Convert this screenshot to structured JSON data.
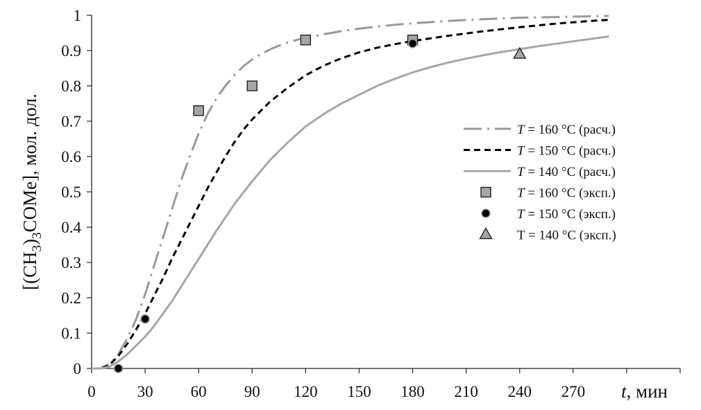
{
  "chart_data": {
    "type": "line",
    "title": "",
    "xlabel": {
      "var": "t",
      "unit": ", мин"
    },
    "ylabel": {
      "part1": "[(CH",
      "sub1": "3",
      "part2": ")",
      "sub2": "3",
      "part3": "COMe], мол. дол."
    },
    "xlim": [
      0,
      330
    ],
    "ylim": [
      0,
      1
    ],
    "x_ticks": [
      0,
      30,
      60,
      90,
      120,
      150,
      180,
      210,
      240,
      270
    ],
    "x_tick_labels": [
      "0",
      "30",
      "60",
      "90",
      "120",
      "150",
      "180",
      "210",
      "240",
      "270"
    ],
    "y_ticks": [
      0,
      0.1,
      0.2,
      0.3,
      0.4,
      0.5,
      0.6,
      0.7,
      0.8,
      0.9,
      1
    ],
    "y_tick_labels": [
      "0",
      "0.1",
      "0.2",
      "0.3",
      "0.4",
      "0.5",
      "0.6",
      "0.7",
      "0.8",
      "0.9",
      "1"
    ],
    "grid": false,
    "legend_position": "right",
    "series": [
      {
        "name": {
          "var": "T",
          "rest": " = 160 °C (расч.)"
        },
        "kind": "line",
        "style": "dash-dot",
        "color": "#999999",
        "x": [
          0,
          5,
          10,
          15,
          20,
          25,
          30,
          35,
          40,
          45,
          50,
          55,
          60,
          65,
          70,
          75,
          80,
          85,
          90,
          95,
          100,
          105,
          110,
          115,
          120,
          130,
          140,
          150,
          160,
          170,
          180,
          200,
          220,
          240,
          260,
          280,
          290
        ],
        "y": [
          0,
          0,
          0.012,
          0.04,
          0.085,
          0.14,
          0.21,
          0.29,
          0.37,
          0.45,
          0.53,
          0.6,
          0.665,
          0.72,
          0.765,
          0.8,
          0.83,
          0.855,
          0.875,
          0.89,
          0.903,
          0.914,
          0.923,
          0.93,
          0.936,
          0.946,
          0.955,
          0.962,
          0.968,
          0.973,
          0.977,
          0.984,
          0.989,
          0.993,
          0.995,
          0.997,
          0.998
        ]
      },
      {
        "name": {
          "var": "T",
          "rest": " = 150 °C (расч.)"
        },
        "kind": "line",
        "style": "dashed",
        "color": "#000000",
        "x": [
          0,
          5,
          10,
          15,
          20,
          25,
          30,
          35,
          40,
          45,
          50,
          55,
          60,
          65,
          70,
          75,
          80,
          85,
          90,
          95,
          100,
          110,
          120,
          130,
          140,
          150,
          160,
          170,
          180,
          200,
          220,
          240,
          260,
          280,
          290
        ],
        "y": [
          0,
          0,
          0.01,
          0.035,
          0.07,
          0.11,
          0.155,
          0.205,
          0.255,
          0.31,
          0.36,
          0.41,
          0.46,
          0.51,
          0.555,
          0.6,
          0.64,
          0.675,
          0.705,
          0.73,
          0.755,
          0.795,
          0.83,
          0.857,
          0.878,
          0.895,
          0.908,
          0.918,
          0.927,
          0.942,
          0.955,
          0.966,
          0.976,
          0.984,
          0.987
        ]
      },
      {
        "name": {
          "var": "T",
          "rest": " = 140 °C (расч.)"
        },
        "kind": "line",
        "style": "solid",
        "color": "#a6a6a6",
        "x": [
          0,
          5,
          10,
          15,
          20,
          25,
          30,
          35,
          40,
          45,
          50,
          55,
          60,
          70,
          80,
          90,
          100,
          110,
          120,
          130,
          140,
          150,
          160,
          170,
          180,
          190,
          200,
          210,
          220,
          230,
          240,
          250,
          260,
          270,
          280,
          290
        ],
        "y": [
          0,
          0,
          0.005,
          0.02,
          0.04,
          0.065,
          0.09,
          0.12,
          0.155,
          0.19,
          0.23,
          0.27,
          0.31,
          0.39,
          0.465,
          0.53,
          0.59,
          0.64,
          0.685,
          0.72,
          0.75,
          0.775,
          0.8,
          0.82,
          0.838,
          0.853,
          0.866,
          0.877,
          0.887,
          0.896,
          0.904,
          0.912,
          0.919,
          0.926,
          0.933,
          0.94
        ]
      },
      {
        "name": {
          "var": "T",
          "rest": " = 160 °C (эксп.)"
        },
        "kind": "marker",
        "marker": "square",
        "color": "#a6a6a6",
        "x": [
          60,
          90,
          120,
          180
        ],
        "y": [
          0.73,
          0.8,
          0.93,
          0.93
        ]
      },
      {
        "name": {
          "var": "T",
          "rest": " = 150 °C (эксп.)"
        },
        "kind": "marker",
        "marker": "circle",
        "color": "#000000",
        "x": [
          15,
          30,
          180
        ],
        "y": [
          0,
          0.14,
          0.92
        ]
      },
      {
        "name": {
          "var": "",
          "rest": "T = 140 °C (эксп.)"
        },
        "kind": "marker",
        "marker": "triangle",
        "color": "#a6a6a6",
        "x": [
          240
        ],
        "y": [
          0.89
        ]
      }
    ]
  }
}
